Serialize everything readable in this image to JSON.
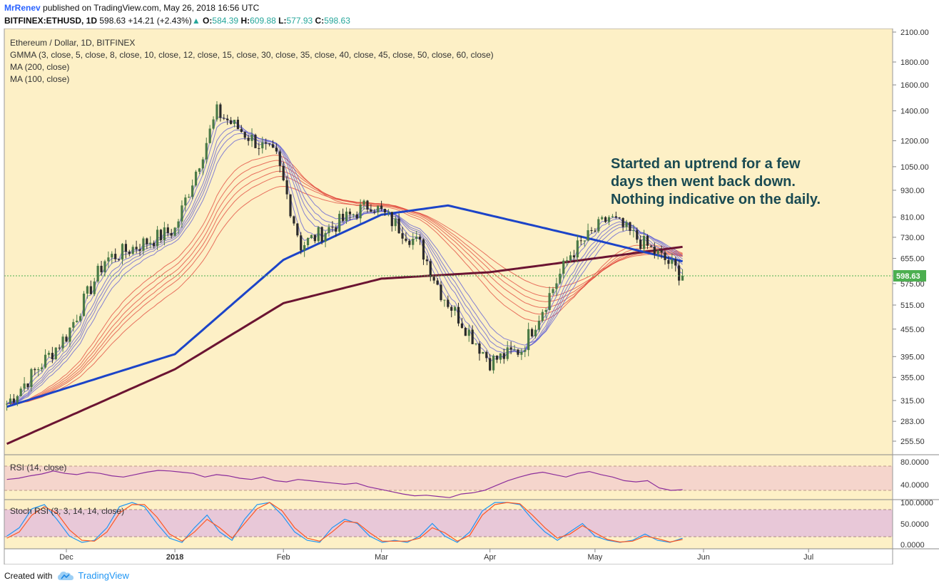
{
  "header": {
    "author": "MrRenev",
    "published": "published on TradingView.com, May 26, 2018 16:56 UTC",
    "symbol": "BITFINEX:ETHUSD, 1D",
    "last": "598.63",
    "change": "+14.21 (+2.43%)",
    "open_label": "O:",
    "open": "584.39",
    "high_label": "H:",
    "high": "609.88",
    "low_label": "L:",
    "low": "577.93",
    "close_label": "C:",
    "close": "598.63"
  },
  "legend": {
    "title": "Ethereum / Dollar, 1D, BITFINEX",
    "gmma": "GMMA (3, close, 5, close, 8, close, 10, close, 12, close, 15, close, 30, close, 35, close, 40, close, 45, close, 50, close, 60, close)",
    "ma200": "MA (200, close)",
    "ma100": "MA (100, close)"
  },
  "annotation": [
    "Started an uptrend for a few",
    "days then went back down.",
    "Nothing indicative on the daily."
  ],
  "footer": {
    "created_with": "Created with",
    "brand": "TradingView"
  },
  "colors": {
    "background": "#fdf0c6",
    "up": "#4a7a46",
    "down": "#2a2a2a",
    "ma100": "#1c44c8",
    "ma200": "#6b1432",
    "gmma_short": "#5b5bd6",
    "gmma_long": "#e0453a",
    "annotation": "#1a4a52",
    "price_label": "#4caf50"
  },
  "chart_data": [
    {
      "type": "candlestick",
      "title": "Ethereum / Dollar, 1D, BITFINEX",
      "y_scale": "log",
      "y_ticks": [
        "2100.00",
        "1800.00",
        "1600.00",
        "1400.00",
        "1200.00",
        "1050.00",
        "930.00",
        "810.00",
        "730.00",
        "655.00",
        "575.00",
        "515.00",
        "455.00",
        "395.00",
        "355.00",
        "315.00",
        "283.00",
        "255.50"
      ],
      "x_labels": [
        "Dec",
        "2018",
        "Feb",
        "Mar",
        "Apr",
        "May",
        "Jun",
        "Jul"
      ],
      "last_price": 598.63,
      "range": {
        "start": "2017-11-14",
        "end": "2018-05-26"
      },
      "key_points": [
        {
          "date": "2017-11-14",
          "close": 310
        },
        {
          "date": "2017-12-01",
          "close": 440
        },
        {
          "date": "2017-12-12",
          "close": 650
        },
        {
          "date": "2018-01-01",
          "close": 760
        },
        {
          "date": "2018-01-13",
          "close": 1390
        },
        {
          "date": "2018-01-30",
          "close": 1100
        },
        {
          "date": "2018-02-06",
          "close": 700
        },
        {
          "date": "2018-02-26",
          "close": 870
        },
        {
          "date": "2018-03-12",
          "close": 700
        },
        {
          "date": "2018-03-18",
          "close": 550
        },
        {
          "date": "2018-04-01",
          "close": 385
        },
        {
          "date": "2018-04-10",
          "close": 410
        },
        {
          "date": "2018-04-24",
          "close": 670
        },
        {
          "date": "2018-05-05",
          "close": 810
        },
        {
          "date": "2018-05-22",
          "close": 640
        },
        {
          "date": "2018-05-26",
          "close": 598.63
        }
      ],
      "ma100_points": [
        {
          "date": "2017-11-14",
          "value": 305
        },
        {
          "date": "2018-01-01",
          "value": 400
        },
        {
          "date": "2018-02-01",
          "value": 650
        },
        {
          "date": "2018-03-01",
          "value": 820
        },
        {
          "date": "2018-03-20",
          "value": 860
        },
        {
          "date": "2018-05-01",
          "value": 720
        },
        {
          "date": "2018-05-26",
          "value": 645
        }
      ],
      "ma200_points": [
        {
          "date": "2017-11-14",
          "value": 252
        },
        {
          "date": "2018-01-01",
          "value": 370
        },
        {
          "date": "2018-02-01",
          "value": 520
        },
        {
          "date": "2018-03-01",
          "value": 590
        },
        {
          "date": "2018-04-01",
          "value": 610
        },
        {
          "date": "2018-05-26",
          "value": 695
        }
      ]
    },
    {
      "type": "line",
      "title": "RSI (14, close)",
      "y_ticks": [
        "80.0000",
        "40.0000"
      ],
      "band": [
        30,
        70
      ],
      "values": [
        58,
        60,
        64,
        67,
        72,
        68,
        66,
        70,
        68,
        64,
        62,
        66,
        70,
        73,
        72,
        70,
        68,
        62,
        66,
        64,
        60,
        58,
        62,
        56,
        54,
        58,
        56,
        54,
        52,
        50,
        52,
        46,
        42,
        38,
        34,
        31,
        32,
        30,
        28,
        34,
        36,
        40,
        48,
        56,
        62,
        67,
        70,
        66,
        62,
        68,
        71,
        66,
        62,
        56,
        54,
        56,
        44,
        40,
        41
      ]
    },
    {
      "type": "line",
      "title": "Stoch RSI (3, 3, 14, 14, close)",
      "y_ticks": [
        "100.0000",
        "50.0000",
        "0.0000"
      ],
      "band": [
        20,
        80
      ],
      "series": [
        {
          "values": [
            20,
            40,
            85,
            95,
            60,
            20,
            5,
            10,
            40,
            90,
            100,
            90,
            50,
            15,
            5,
            40,
            70,
            30,
            10,
            60,
            95,
            100,
            70,
            30,
            10,
            5,
            40,
            60,
            50,
            20,
            5,
            10,
            5,
            20,
            50,
            20,
            5,
            30,
            80,
            100,
            100,
            95,
            60,
            30,
            10,
            30,
            50,
            20,
            10,
            5,
            10,
            25,
            10,
            5,
            15
          ]
        },
        {
          "values": [
            15,
            30,
            70,
            90,
            75,
            35,
            10,
            8,
            30,
            75,
            95,
            95,
            65,
            25,
            8,
            30,
            60,
            40,
            15,
            50,
            85,
            100,
            80,
            40,
            15,
            8,
            30,
            55,
            52,
            28,
            8,
            8,
            8,
            15,
            40,
            28,
            8,
            22,
            70,
            95,
            100,
            97,
            70,
            40,
            15,
            25,
            45,
            28,
            12,
            6,
            8,
            20,
            14,
            6,
            12
          ]
        }
      ]
    }
  ]
}
